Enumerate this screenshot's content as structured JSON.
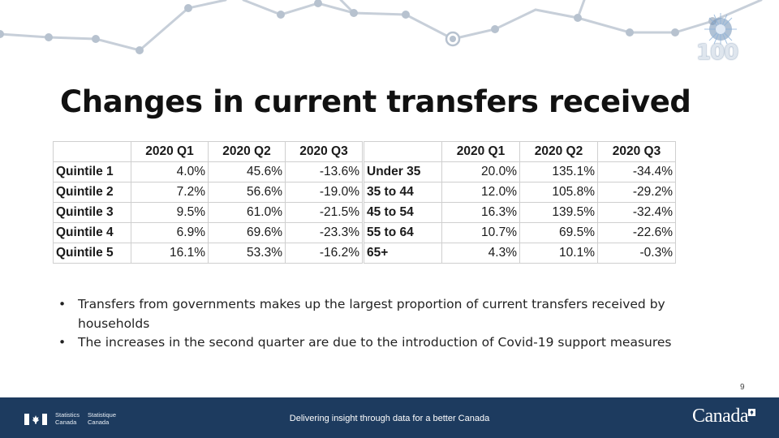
{
  "slide": {
    "title": "Changes in current transfers received",
    "page_number": "9"
  },
  "table_quintile": {
    "columns": [
      "",
      "2020 Q1",
      "2020 Q2",
      "2020 Q3"
    ],
    "rows": [
      {
        "label": "Quintile 1",
        "values": [
          "4.0%",
          "45.6%",
          "-13.6%"
        ]
      },
      {
        "label": "Quintile 2",
        "values": [
          "7.2%",
          "56.6%",
          "-19.0%"
        ]
      },
      {
        "label": "Quintile 3",
        "values": [
          "9.5%",
          "61.0%",
          "-21.5%"
        ]
      },
      {
        "label": "Quintile 4",
        "values": [
          "6.9%",
          "69.6%",
          "-23.3%"
        ]
      },
      {
        "label": "Quintile 5",
        "values": [
          "16.1%",
          "53.3%",
          "-16.2%"
        ]
      }
    ]
  },
  "table_age": {
    "columns": [
      "",
      "2020 Q1",
      "2020 Q2",
      "2020 Q3"
    ],
    "rows": [
      {
        "label": "Under 35",
        "values": [
          "20.0%",
          "135.1%",
          "-34.4%"
        ]
      },
      {
        "label": "35 to 44",
        "values": [
          "12.0%",
          "105.8%",
          "-29.2%"
        ]
      },
      {
        "label": "45 to 54",
        "values": [
          "16.3%",
          "139.5%",
          "-32.4%"
        ]
      },
      {
        "label": "55 to 64",
        "values": [
          "10.7%",
          "69.5%",
          "-22.6%"
        ]
      },
      {
        "label": "65+",
        "values": [
          "4.3%",
          "10.1%",
          "-0.3%"
        ]
      }
    ]
  },
  "bullets": [
    "Transfers from governments makes up the largest proportion of current transfers received by households",
    "The increases in the second quarter are due to the introduction of Covid-19 support measures"
  ],
  "header_logo": {
    "text": "100",
    "icon": "anniversary-100-logo"
  },
  "footer": {
    "agency_en_line1": "Statistics",
    "agency_en_line2": "Canada",
    "agency_fr_line1": "Statistique",
    "agency_fr_line2": "Canada",
    "tagline": "Delivering insight through data for a better Canada",
    "wordmark": "Canada",
    "colors": {
      "background": "#1d3b5f",
      "text": "#ffffff"
    }
  }
}
